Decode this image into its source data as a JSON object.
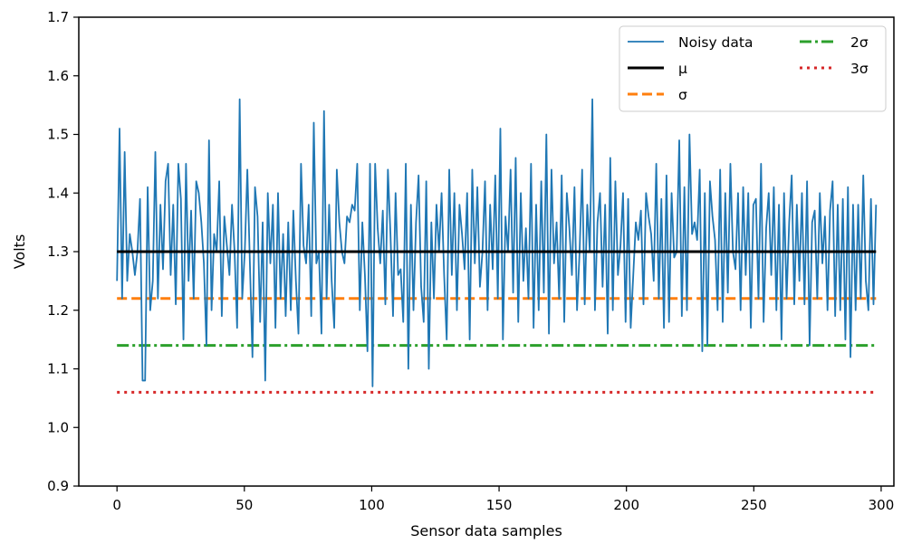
{
  "chart_data": {
    "type": "line",
    "xlabel": "Sensor data samples",
    "ylabel": "Volts",
    "xlim": [
      -15,
      305
    ],
    "ylim": [
      0.9,
      1.7
    ],
    "x_ticks": [
      0,
      50,
      100,
      150,
      200,
      250,
      300
    ],
    "x_tick_labels": [
      "0",
      "50",
      "100",
      "150",
      "200",
      "250",
      "300"
    ],
    "y_ticks": [
      0.9,
      1.0,
      1.1,
      1.2,
      1.3,
      1.4,
      1.5,
      1.6,
      1.7
    ],
    "y_tick_labels": [
      "0.9",
      "1.0",
      "1.1",
      "1.2",
      "1.3",
      "1.4",
      "1.5",
      "1.6",
      "1.7"
    ],
    "grid": false,
    "legend_position": "top-right",
    "legend_columns": 2,
    "series": [
      {
        "name": "Noisy data",
        "color": "#1f77b4",
        "style": "solid",
        "x_start": 0,
        "x_end": 298,
        "values": [
          1.25,
          1.51,
          1.22,
          1.47,
          1.25,
          1.33,
          1.3,
          1.26,
          1.3,
          1.39,
          1.08,
          1.08,
          1.41,
          1.2,
          1.25,
          1.47,
          1.22,
          1.38,
          1.27,
          1.42,
          1.45,
          1.26,
          1.38,
          1.21,
          1.45,
          1.39,
          1.15,
          1.45,
          1.25,
          1.37,
          1.22,
          1.42,
          1.4,
          1.35,
          1.28,
          1.14,
          1.49,
          1.2,
          1.33,
          1.3,
          1.42,
          1.19,
          1.36,
          1.31,
          1.26,
          1.38,
          1.3,
          1.17,
          1.56,
          1.22,
          1.3,
          1.44,
          1.28,
          1.12,
          1.41,
          1.36,
          1.18,
          1.35,
          1.08,
          1.4,
          1.28,
          1.38,
          1.17,
          1.4,
          1.22,
          1.33,
          1.19,
          1.35,
          1.2,
          1.37,
          1.25,
          1.16,
          1.45,
          1.31,
          1.28,
          1.38,
          1.19,
          1.52,
          1.28,
          1.3,
          1.16,
          1.54,
          1.22,
          1.38,
          1.25,
          1.17,
          1.44,
          1.35,
          1.3,
          1.28,
          1.36,
          1.35,
          1.38,
          1.37,
          1.45,
          1.2,
          1.35,
          1.26,
          1.13,
          1.45,
          1.07,
          1.45,
          1.34,
          1.28,
          1.37,
          1.21,
          1.44,
          1.33,
          1.19,
          1.4,
          1.26,
          1.27,
          1.18,
          1.45,
          1.1,
          1.38,
          1.2,
          1.35,
          1.43,
          1.24,
          1.18,
          1.42,
          1.1,
          1.35,
          1.22,
          1.38,
          1.3,
          1.4,
          1.26,
          1.15,
          1.44,
          1.26,
          1.4,
          1.2,
          1.38,
          1.33,
          1.27,
          1.4,
          1.15,
          1.44,
          1.28,
          1.41,
          1.24,
          1.3,
          1.42,
          1.2,
          1.38,
          1.27,
          1.43,
          1.22,
          1.51,
          1.15,
          1.36,
          1.3,
          1.44,
          1.23,
          1.46,
          1.18,
          1.4,
          1.25,
          1.34,
          1.22,
          1.45,
          1.17,
          1.38,
          1.2,
          1.42,
          1.23,
          1.5,
          1.16,
          1.44,
          1.28,
          1.35,
          1.22,
          1.43,
          1.18,
          1.4,
          1.34,
          1.26,
          1.41,
          1.2,
          1.3,
          1.44,
          1.21,
          1.38,
          1.3,
          1.56,
          1.2,
          1.35,
          1.4,
          1.24,
          1.38,
          1.16,
          1.46,
          1.2,
          1.42,
          1.26,
          1.31,
          1.4,
          1.18,
          1.39,
          1.17,
          1.26,
          1.35,
          1.32,
          1.37,
          1.21,
          1.4,
          1.36,
          1.33,
          1.25,
          1.45,
          1.22,
          1.39,
          1.17,
          1.43,
          1.18,
          1.4,
          1.29,
          1.3,
          1.49,
          1.19,
          1.41,
          1.2,
          1.5,
          1.33,
          1.35,
          1.32,
          1.44,
          1.13,
          1.4,
          1.14,
          1.42,
          1.36,
          1.32,
          1.2,
          1.44,
          1.18,
          1.4,
          1.23,
          1.45,
          1.3,
          1.27,
          1.4,
          1.2,
          1.41,
          1.26,
          1.4,
          1.17,
          1.38,
          1.39,
          1.22,
          1.45,
          1.18,
          1.34,
          1.4,
          1.26,
          1.41,
          1.2,
          1.38,
          1.15,
          1.4,
          1.22,
          1.35,
          1.43,
          1.21,
          1.38,
          1.25,
          1.4,
          1.21,
          1.42,
          1.14,
          1.35,
          1.37,
          1.22,
          1.4,
          1.28,
          1.36,
          1.2,
          1.37,
          1.42,
          1.19,
          1.38,
          1.2,
          1.39,
          1.15,
          1.41,
          1.12,
          1.38,
          1.2,
          1.38,
          1.22,
          1.43,
          1.25,
          1.2,
          1.39,
          1.21,
          1.38
        ]
      },
      {
        "name": "μ",
        "color": "#000000",
        "style": "solid",
        "x_start": 0,
        "x_end": 298,
        "value": 1.3
      },
      {
        "name": "σ",
        "color": "#ff7f0e",
        "style": "dashed",
        "x_start": 0,
        "x_end": 298,
        "value": 1.22
      },
      {
        "name": "2σ",
        "color": "#2ca02c",
        "style": "dashdot",
        "x_start": 0,
        "x_end": 298,
        "value": 1.14
      },
      {
        "name": "3σ",
        "color": "#d62728",
        "style": "dotted",
        "x_start": 0,
        "x_end": 298,
        "value": 1.06
      }
    ]
  }
}
